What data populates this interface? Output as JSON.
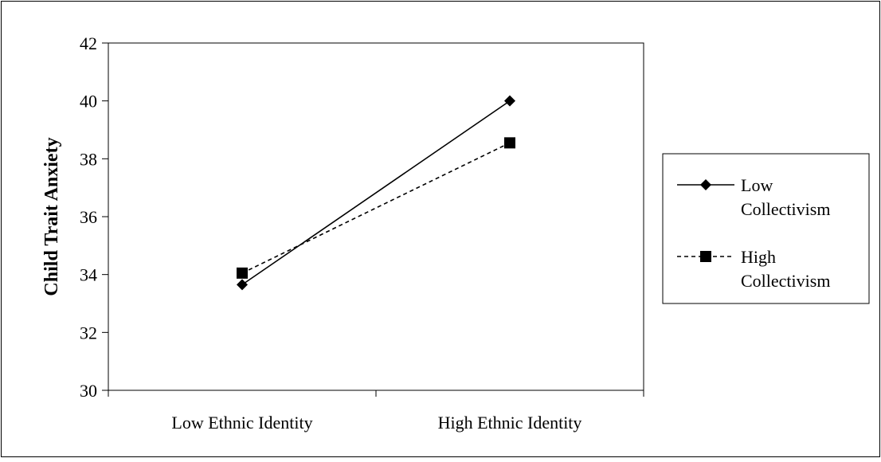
{
  "chart_data": {
    "type": "line",
    "title": "",
    "xlabel": "",
    "ylabel": "Child Trait Anxiety",
    "categories": [
      "Low Ethnic Identity",
      "High Ethnic Identity"
    ],
    "ylim": [
      30,
      42
    ],
    "yticks": [
      30,
      32,
      34,
      36,
      38,
      40,
      42
    ],
    "grid": false,
    "legend_position": "right",
    "series": [
      {
        "name_lines": [
          "Low",
          "Collectivism"
        ],
        "values": [
          33.65,
          40.0
        ],
        "marker": "diamond",
        "line_style": "solid",
        "color": "#000000"
      },
      {
        "name_lines": [
          "High",
          "Collectivism"
        ],
        "values": [
          34.05,
          38.55
        ],
        "marker": "square",
        "line_style": "dashed",
        "color": "#000000"
      }
    ]
  }
}
